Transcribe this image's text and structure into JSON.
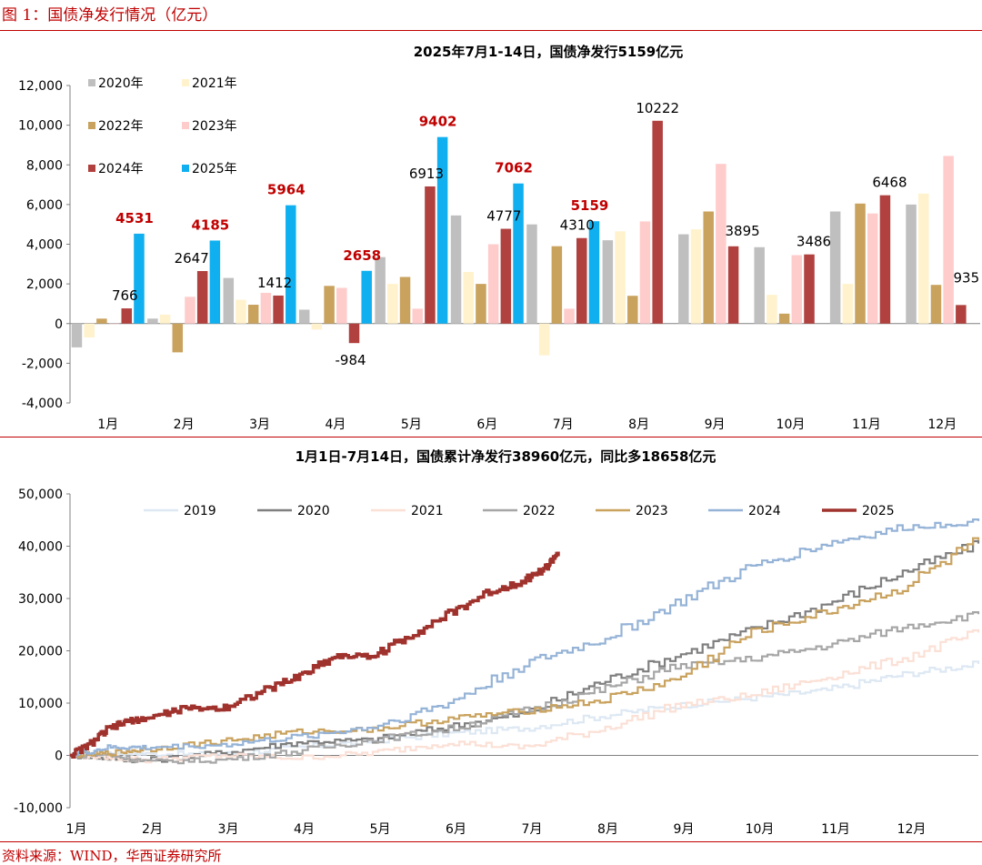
{
  "figure_title": "图 1：国债净发行情况（亿元）",
  "source": "资料来源：WIND，华西证券研究所",
  "colors": {
    "accent": "#c00000",
    "bar_series": [
      "#bfbfbf",
      "#fff2cc",
      "#c9a25e",
      "#ffcccc",
      "#b0413e",
      "#10b0f0"
    ],
    "line_series": [
      "#dde8f3",
      "#7f7f7f",
      "#fbe0d6",
      "#a6a6a6",
      "#c9a25e",
      "#95b3d7",
      "#a0322d"
    ]
  },
  "chart_data": [
    {
      "type": "bar",
      "title": "2025年7月1-14日，国债净发行5159亿元",
      "categories": [
        "1月",
        "2月",
        "3月",
        "4月",
        "5月",
        "6月",
        "7月",
        "8月",
        "9月",
        "10月",
        "11月",
        "12月"
      ],
      "ylim": [
        -4000,
        12000
      ],
      "yticks": [
        "12,000",
        "10,000",
        "8,000",
        "6,000",
        "4,000",
        "2,000",
        "0",
        "-2,000",
        "-4,000"
      ],
      "legend_position": "top-left",
      "grid": false,
      "series": [
        {
          "name": "2020年",
          "values": [
            -1200,
            250,
            2300,
            700,
            3350,
            5450,
            5000,
            4200,
            4500,
            3850,
            5650,
            6000
          ]
        },
        {
          "name": "2021年",
          "values": [
            -700,
            450,
            1200,
            -300,
            2000,
            2600,
            -1600,
            4650,
            4750,
            1450,
            2000,
            6550
          ]
        },
        {
          "name": "2022年",
          "values": [
            250,
            -1450,
            950,
            1900,
            2350,
            2000,
            3900,
            1400,
            5650,
            500,
            6050,
            1950
          ]
        },
        {
          "name": "2023年",
          "values": [
            0,
            1350,
            1550,
            1800,
            750,
            4000,
            750,
            5150,
            8050,
            3450,
            5550,
            8450
          ]
        },
        {
          "name": "2024年",
          "values": [
            766,
            2647,
            1412,
            -984,
            6913,
            4777,
            4310,
            10222,
            3895,
            3486,
            6468,
            935
          ]
        },
        {
          "name": "2025年",
          "values": [
            4531,
            4185,
            5964,
            2658,
            9402,
            7062,
            5159,
            null,
            null,
            null,
            null,
            null
          ]
        }
      ],
      "annotations_2024": [
        "766",
        "2647",
        "1412",
        "-984",
        "6913",
        "4777",
        "4310",
        "10222",
        "3895",
        "3486",
        "6468",
        "935"
      ],
      "annotations_2025": [
        "4531",
        "4185",
        "5964",
        "2658",
        "9402",
        "7062",
        "5159"
      ]
    },
    {
      "type": "line",
      "title": "1月1日-7月14日，国债累计净发行38960亿元，同比多18658亿元",
      "x_unit": "month",
      "xlim": [
        1,
        13
      ],
      "xticks": [
        "1月",
        "2月",
        "3月",
        "4月",
        "5月",
        "6月",
        "7月",
        "8月",
        "9月",
        "10月",
        "11月",
        "12月"
      ],
      "ylim": [
        -10000,
        50000
      ],
      "yticks": [
        "50,000",
        "40,000",
        "30,000",
        "20,000",
        "10,000",
        "0",
        "-10,000"
      ],
      "legend_position": "top",
      "grid": false,
      "series": [
        {
          "name": "2019",
          "x": [
            1,
            1.5,
            2,
            3,
            4,
            5,
            6,
            7,
            8,
            9,
            10,
            11,
            12,
            13
          ],
          "y": [
            0,
            600,
            300,
            200,
            1500,
            2800,
            4200,
            5200,
            7500,
            9500,
            11000,
            12500,
            15500,
            17500
          ]
        },
        {
          "name": "2020",
          "x": [
            1,
            1.5,
            2,
            3,
            4,
            5,
            6,
            7,
            8,
            9,
            10,
            11,
            12,
            13
          ],
          "y": [
            0,
            -500,
            -1000,
            500,
            2500,
            3000,
            5500,
            8000,
            14000,
            19000,
            24000,
            29000,
            35000,
            40500
          ]
        },
        {
          "name": "2021",
          "x": [
            1,
            1.5,
            2,
            3,
            4,
            5,
            6,
            7,
            8,
            9,
            10,
            11,
            12,
            13
          ],
          "y": [
            0,
            -300,
            -900,
            0,
            -500,
            500,
            2500,
            1500,
            5000,
            9500,
            11500,
            15000,
            18500,
            23500
          ]
        },
        {
          "name": "2022",
          "x": [
            1,
            1.5,
            2,
            3,
            4,
            5,
            6,
            7,
            8,
            9,
            10,
            11,
            12,
            13
          ],
          "y": [
            0,
            200,
            -1200,
            -900,
            800,
            3000,
            5000,
            8500,
            12500,
            17000,
            18500,
            21000,
            24500,
            27000
          ]
        },
        {
          "name": "2023",
          "x": [
            1,
            1.5,
            2,
            3,
            4,
            5,
            6,
            7,
            8,
            9,
            10,
            11,
            12,
            13
          ],
          "y": [
            0,
            400,
            1200,
            2700,
            4500,
            5000,
            7000,
            8500,
            10500,
            14500,
            23500,
            27500,
            32000,
            41200
          ]
        },
        {
          "name": "2024",
          "x": [
            1,
            1.5,
            2,
            3,
            4,
            5,
            6,
            7,
            8,
            9,
            10,
            11,
            12,
            13
          ],
          "y": [
            0,
            1500,
            1500,
            2000,
            3500,
            5500,
            10000,
            17500,
            22000,
            29000,
            36000,
            40500,
            43500,
            44800
          ]
        },
        {
          "name": "2025",
          "x": [
            1,
            1.25,
            1.5,
            1.75,
            2,
            2.5,
            3,
            3.5,
            4,
            4.5,
            5,
            5.5,
            6,
            6.5,
            7,
            7.3,
            7.45
          ],
          "y": [
            0,
            2000,
            5000,
            6500,
            7000,
            9000,
            9000,
            12000,
            15000,
            19000,
            19000,
            23000,
            27000,
            31000,
            33500,
            36000,
            38960
          ]
        }
      ]
    }
  ]
}
